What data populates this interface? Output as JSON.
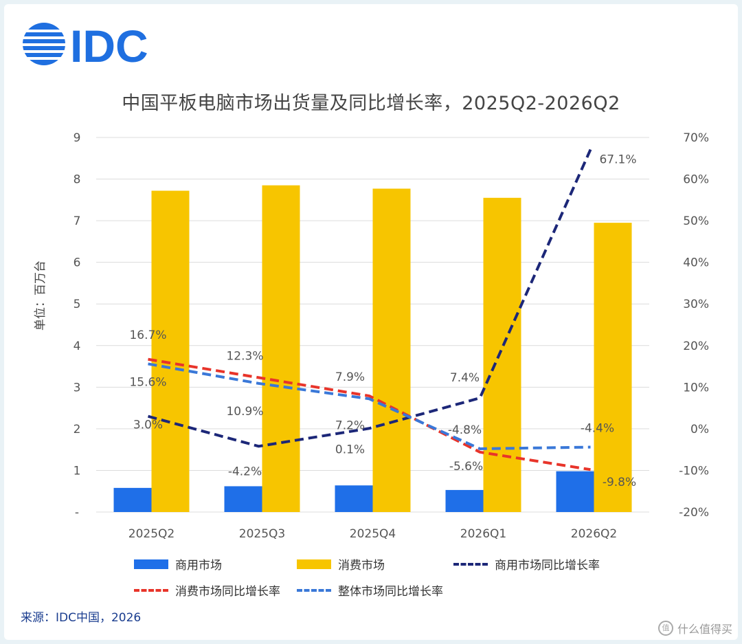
{
  "logo": {
    "text": "IDC",
    "color": "#1f6fe0"
  },
  "title": "中国平板电脑市场出货量及同比增长率，2025Q2-2026Q2",
  "source": "来源：IDC中国，2026",
  "watermark": "什么值得买",
  "colors": {
    "commercial": "#1f6fe8",
    "consumer": "#f7c500",
    "commercial_yoy": "#1c2778",
    "consumer_yoy": "#e8342a",
    "overall_yoy": "#3a78d8",
    "grid": "#dcdcdc",
    "axis_text": "#555555"
  },
  "chart_data": {
    "type": "bar",
    "categories": [
      "2025Q2",
      "2025Q3",
      "2025Q4",
      "2026Q1",
      "2026Q2"
    ],
    "ylabel": "单位：百万台",
    "ylim": [
      0,
      9
    ],
    "y_ticks": [
      "-",
      "1",
      "2",
      "3",
      "4",
      "5",
      "6",
      "7",
      "8",
      "9"
    ],
    "y2lim": [
      -20,
      70
    ],
    "y2_ticks": [
      "-20%",
      "-10%",
      "0%",
      "10%",
      "20%",
      "30%",
      "40%",
      "50%",
      "60%",
      "70%"
    ],
    "grid": true,
    "legend_position": "bottom",
    "series": [
      {
        "name": "商用市场",
        "type": "bar",
        "axis": "left",
        "values": [
          0.58,
          0.62,
          0.64,
          0.53,
          0.98
        ]
      },
      {
        "name": "消费市场",
        "type": "bar",
        "axis": "left",
        "values": [
          7.72,
          7.85,
          7.77,
          7.55,
          6.95
        ]
      },
      {
        "name": "商用市场同比增长率",
        "type": "line",
        "axis": "right",
        "values": [
          3.0,
          -4.2,
          0.1,
          7.4,
          67.1
        ],
        "labels": [
          "3.0%",
          "-4.2%",
          "0.1%",
          "7.4%",
          "67.1%"
        ]
      },
      {
        "name": "消费市场同比增长率",
        "type": "line",
        "axis": "right",
        "values": [
          16.7,
          12.3,
          7.9,
          -5.6,
          -9.8
        ],
        "labels": [
          "16.7%",
          "12.3%",
          "7.9%",
          "-5.6%",
          "-9.8%"
        ]
      },
      {
        "name": "整体市场同比增长率",
        "type": "line",
        "axis": "right",
        "values": [
          15.6,
          10.9,
          7.2,
          -4.8,
          -4.4
        ],
        "labels": [
          "15.6%",
          "10.9%",
          "7.2%",
          "-4.8%",
          "-4.4%"
        ]
      }
    ]
  }
}
